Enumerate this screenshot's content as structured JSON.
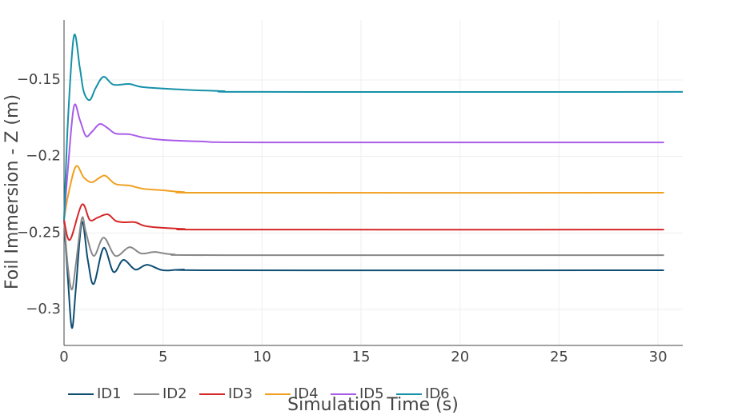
{
  "chart_data": {
    "type": "line",
    "x_label": "Simulation Time (s)",
    "y_label": "Foil Immersion - Z (m)",
    "xlim": [
      0,
      31.25
    ],
    "ylim": [
      -0.3235,
      -0.1108
    ],
    "xticks": [
      0,
      5,
      10,
      15,
      20,
      25,
      30
    ],
    "yticks": [
      {
        "value": -0.3,
        "label": "−0.3"
      },
      {
        "value": -0.25,
        "label": "−0.25"
      },
      {
        "value": -0.2,
        "label": "−0.2"
      },
      {
        "value": -0.15,
        "label": "−0.15"
      }
    ],
    "grid": true,
    "legend": "bottom-left",
    "series": [
      {
        "name": "ID1",
        "color": "#0e4d73",
        "x": [
          0,
          0.2,
          0.4,
          0.6,
          0.9,
          1.2,
          1.5,
          2.0,
          2.5,
          3.0,
          3.6,
          4.2,
          5,
          6,
          8,
          30.3
        ],
        "values": [
          -0.2415,
          -0.2807,
          -0.3121,
          -0.2859,
          -0.243,
          -0.2676,
          -0.2833,
          -0.2598,
          -0.2755,
          -0.2676,
          -0.2739,
          -0.2708,
          -0.2744,
          -0.2739,
          -0.2744,
          -0.2744
        ]
      },
      {
        "name": "ID2",
        "color": "#888888",
        "x": [
          0,
          0.2,
          0.4,
          0.6,
          0.9,
          1.1,
          1.5,
          2.0,
          2.6,
          3.3,
          3.9,
          4.6,
          5.5,
          8,
          30.3
        ],
        "values": [
          -0.2415,
          -0.2728,
          -0.287,
          -0.2702,
          -0.2404,
          -0.2493,
          -0.265,
          -0.253,
          -0.265,
          -0.2593,
          -0.2634,
          -0.2624,
          -0.264,
          -0.2645,
          -0.2645
        ]
      },
      {
        "name": "ID3",
        "color": "#d62728",
        "x": [
          0,
          0.3,
          0.9,
          1.3,
          1.7,
          2.2,
          2.6,
          3.0,
          3.6,
          4.2,
          6,
          8,
          30.3
        ],
        "values": [
          -0.2415,
          -0.2545,
          -0.2315,
          -0.2415,
          -0.2399,
          -0.2378,
          -0.242,
          -0.243,
          -0.243,
          -0.2457,
          -0.2473,
          -0.2478,
          -0.2478
        ]
      },
      {
        "name": "ID4",
        "color": "#f0a020",
        "x": [
          0,
          0.2,
          0.6,
          1.0,
          1.4,
          1.8,
          2.1,
          2.6,
          3.3,
          4,
          5,
          6,
          8,
          30.3
        ],
        "values": [
          -0.2415,
          -0.2258,
          -0.2065,
          -0.2138,
          -0.2169,
          -0.2138,
          -0.2127,
          -0.218,
          -0.219,
          -0.2211,
          -0.2221,
          -0.2232,
          -0.2237,
          -0.2237
        ]
      },
      {
        "name": "ID5",
        "color": "#a85ce8",
        "x": [
          0,
          0.2,
          0.5,
          0.8,
          1.1,
          1.4,
          1.8,
          2.2,
          2.6,
          3.3,
          4,
          5,
          7,
          10,
          30.3
        ],
        "values": [
          -0.2415,
          -0.2075,
          -0.1673,
          -0.1761,
          -0.1866,
          -0.184,
          -0.1788,
          -0.1814,
          -0.185,
          -0.1855,
          -0.1876,
          -0.1892,
          -0.1902,
          -0.1908,
          -0.1908
        ]
      },
      {
        "name": "ID6",
        "color": "#1591a8",
        "x": [
          0,
          0.2,
          0.5,
          0.8,
          1.0,
          1.3,
          1.6,
          2.0,
          2.5,
          3.3,
          4,
          6,
          8,
          10,
          31.25
        ],
        "values": [
          -0.2415,
          -0.1761,
          -0.1212,
          -0.1422,
          -0.1578,
          -0.1631,
          -0.1552,
          -0.1479,
          -0.1531,
          -0.1526,
          -0.1547,
          -0.1563,
          -0.1573,
          -0.1578,
          -0.1578
        ]
      }
    ]
  }
}
